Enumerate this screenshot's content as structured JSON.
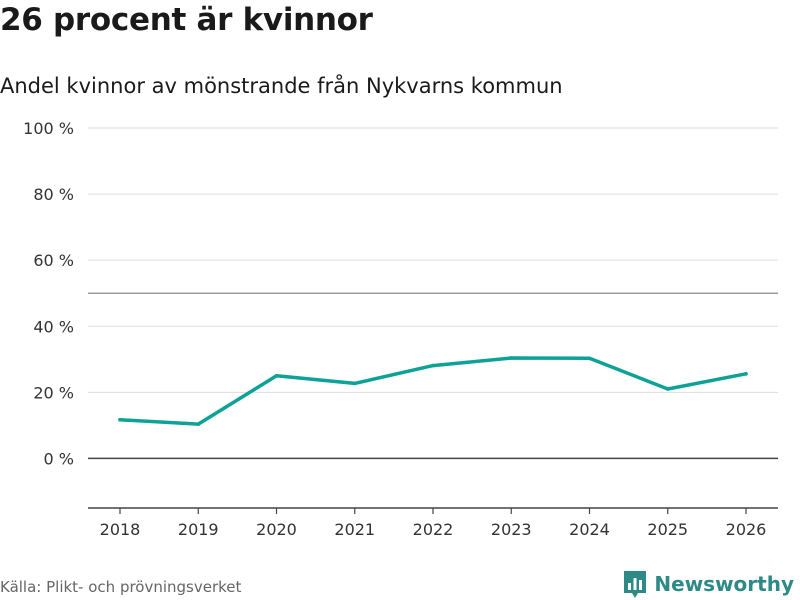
{
  "title": "26 procent är kvinnor",
  "subtitle": "Andel kvinnor av mönstrande från Nykvarns kommun",
  "source": "Källa: Plikt- och prövningsverket",
  "brand": {
    "name": "Newsworthy",
    "icon": "newsworthy-logo-icon",
    "color": "#2e8a86"
  },
  "chart_data": {
    "type": "line",
    "title": "26 procent är kvinnor",
    "subtitle": "Andel kvinnor av mönstrande från Nykvarns kommun",
    "xlabel": "",
    "ylabel": "",
    "x": [
      "2018",
      "2019",
      "2020",
      "2021",
      "2022",
      "2023",
      "2024",
      "2025",
      "2026"
    ],
    "series": [
      {
        "name": "Andel kvinnor",
        "values": [
          11.7,
          10.4,
          25.0,
          22.7,
          28.1,
          30.4,
          30.3,
          21.0,
          25.6
        ],
        "color": "#0ea297"
      }
    ],
    "ylim": [
      -15,
      100
    ],
    "yticks": [
      0,
      20,
      40,
      60,
      80,
      100
    ],
    "ytick_labels": [
      "0 %",
      "20 %",
      "40 %",
      "60 %",
      "80 %",
      "100 %"
    ],
    "reference_lines": [
      50
    ],
    "grid": true,
    "legend": "none"
  }
}
